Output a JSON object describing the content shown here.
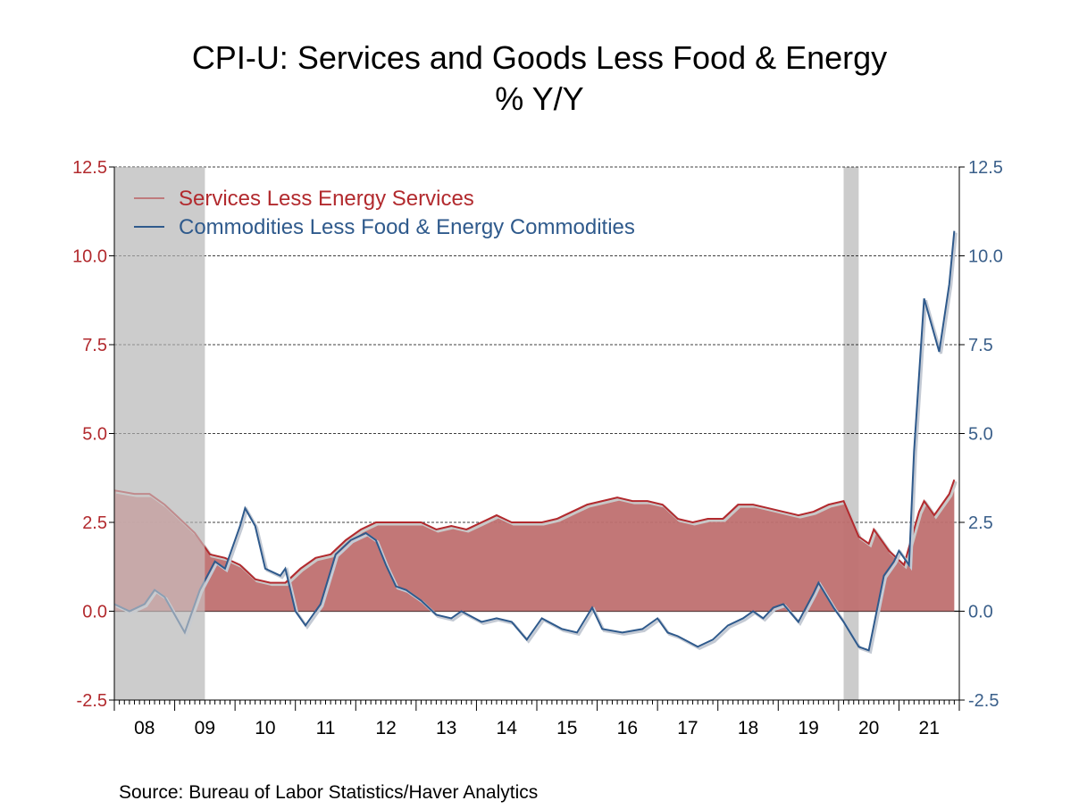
{
  "chart_data": {
    "type": "area",
    "title": "CPI-U: Services and Goods Less Food & Energy",
    "subtitle": "% Y/Y",
    "source": "Source:  Bureau of Labor Statistics/Haver Analytics",
    "xlim": [
      "2008-01",
      "2021-12"
    ],
    "x_tick_labels": [
      "08",
      "09",
      "10",
      "11",
      "12",
      "13",
      "14",
      "15",
      "16",
      "17",
      "18",
      "19",
      "20",
      "21"
    ],
    "ylim": [
      -2.5,
      12.5
    ],
    "y_ticks": [
      -2.5,
      0.0,
      2.5,
      5.0,
      7.5,
      10.0,
      12.5
    ],
    "y_tick_labels": [
      "-2.5",
      "0.0",
      "2.5",
      "5.0",
      "7.5",
      "10.0",
      "12.5"
    ],
    "grid": "horizontal dashed",
    "legend": "top-left",
    "recessions": [
      [
        "2008-01",
        "2009-06"
      ],
      [
        "2020-02",
        "2020-04"
      ]
    ],
    "colors": {
      "services": "#b22a2e",
      "services_fill": "#bf7070",
      "commodities": "#2f5a8c",
      "recession": "#cccccc",
      "left_axis": "#b22a2e",
      "right_axis": "#3a5f8a"
    },
    "series": [
      {
        "name": "Services Less Energy Services",
        "style": "area",
        "axis": "left",
        "points": [
          [
            "2008-01",
            3.4
          ],
          [
            "2008-05",
            3.3
          ],
          [
            "2008-08",
            3.3
          ],
          [
            "2008-11",
            3.0
          ],
          [
            "2009-02",
            2.6
          ],
          [
            "2009-05",
            2.2
          ],
          [
            "2009-08",
            1.6
          ],
          [
            "2009-11",
            1.5
          ],
          [
            "2010-02",
            1.3
          ],
          [
            "2010-05",
            0.9
          ],
          [
            "2010-08",
            0.8
          ],
          [
            "2010-11",
            0.8
          ],
          [
            "2011-02",
            1.2
          ],
          [
            "2011-05",
            1.5
          ],
          [
            "2011-08",
            1.6
          ],
          [
            "2011-11",
            2.0
          ],
          [
            "2012-02",
            2.3
          ],
          [
            "2012-05",
            2.5
          ],
          [
            "2012-08",
            2.5
          ],
          [
            "2012-11",
            2.5
          ],
          [
            "2013-02",
            2.5
          ],
          [
            "2013-05",
            2.3
          ],
          [
            "2013-08",
            2.4
          ],
          [
            "2013-11",
            2.3
          ],
          [
            "2014-02",
            2.5
          ],
          [
            "2014-05",
            2.7
          ],
          [
            "2014-08",
            2.5
          ],
          [
            "2014-11",
            2.5
          ],
          [
            "2015-02",
            2.5
          ],
          [
            "2015-05",
            2.6
          ],
          [
            "2015-08",
            2.8
          ],
          [
            "2015-11",
            3.0
          ],
          [
            "2016-02",
            3.1
          ],
          [
            "2016-05",
            3.2
          ],
          [
            "2016-08",
            3.1
          ],
          [
            "2016-11",
            3.1
          ],
          [
            "2017-02",
            3.0
          ],
          [
            "2017-05",
            2.6
          ],
          [
            "2017-08",
            2.5
          ],
          [
            "2017-11",
            2.6
          ],
          [
            "2018-02",
            2.6
          ],
          [
            "2018-05",
            3.0
          ],
          [
            "2018-08",
            3.0
          ],
          [
            "2018-11",
            2.9
          ],
          [
            "2019-02",
            2.8
          ],
          [
            "2019-05",
            2.7
          ],
          [
            "2019-08",
            2.8
          ],
          [
            "2019-11",
            3.0
          ],
          [
            "2020-02",
            3.1
          ],
          [
            "2020-05",
            2.1
          ],
          [
            "2020-07",
            1.9
          ],
          [
            "2020-08",
            2.3
          ],
          [
            "2020-11",
            1.7
          ],
          [
            "2021-02",
            1.3
          ],
          [
            "2021-05",
            2.8
          ],
          [
            "2021-06",
            3.1
          ],
          [
            "2021-08",
            2.7
          ],
          [
            "2021-11",
            3.3
          ],
          [
            "2021-12",
            3.7
          ]
        ]
      },
      {
        "name": "Commodities Less Food & Energy Commodities",
        "style": "line",
        "axis": "right",
        "points": [
          [
            "2008-01",
            0.2
          ],
          [
            "2008-04",
            0.0
          ],
          [
            "2008-07",
            0.2
          ],
          [
            "2008-09",
            0.6
          ],
          [
            "2008-11",
            0.4
          ],
          [
            "2009-03",
            -0.6
          ],
          [
            "2009-06",
            0.6
          ],
          [
            "2009-09",
            1.4
          ],
          [
            "2009-11",
            1.2
          ],
          [
            "2010-02",
            2.4
          ],
          [
            "2010-03",
            2.9
          ],
          [
            "2010-05",
            2.4
          ],
          [
            "2010-07",
            1.2
          ],
          [
            "2010-10",
            1.0
          ],
          [
            "2010-11",
            1.2
          ],
          [
            "2011-01",
            0.0
          ],
          [
            "2011-03",
            -0.4
          ],
          [
            "2011-06",
            0.2
          ],
          [
            "2011-09",
            1.6
          ],
          [
            "2011-12",
            2.0
          ],
          [
            "2012-03",
            2.2
          ],
          [
            "2012-05",
            2.0
          ],
          [
            "2012-07",
            1.3
          ],
          [
            "2012-09",
            0.7
          ],
          [
            "2012-11",
            0.6
          ],
          [
            "2013-02",
            0.3
          ],
          [
            "2013-05",
            -0.1
          ],
          [
            "2013-08",
            -0.2
          ],
          [
            "2013-10",
            0.0
          ],
          [
            "2014-02",
            -0.3
          ],
          [
            "2014-05",
            -0.2
          ],
          [
            "2014-08",
            -0.3
          ],
          [
            "2014-11",
            -0.8
          ],
          [
            "2015-02",
            -0.2
          ],
          [
            "2015-06",
            -0.5
          ],
          [
            "2015-09",
            -0.6
          ],
          [
            "2015-12",
            0.1
          ],
          [
            "2016-02",
            -0.5
          ],
          [
            "2016-06",
            -0.6
          ],
          [
            "2016-10",
            -0.5
          ],
          [
            "2017-01",
            -0.2
          ],
          [
            "2017-03",
            -0.6
          ],
          [
            "2017-05",
            -0.7
          ],
          [
            "2017-09",
            -1.0
          ],
          [
            "2017-12",
            -0.8
          ],
          [
            "2018-03",
            -0.4
          ],
          [
            "2018-06",
            -0.2
          ],
          [
            "2018-08",
            0.0
          ],
          [
            "2018-10",
            -0.2
          ],
          [
            "2018-12",
            0.1
          ],
          [
            "2019-02",
            0.2
          ],
          [
            "2019-05",
            -0.3
          ],
          [
            "2019-08",
            0.5
          ],
          [
            "2019-09",
            0.8
          ],
          [
            "2019-12",
            0.1
          ],
          [
            "2020-02",
            -0.3
          ],
          [
            "2020-05",
            -1.0
          ],
          [
            "2020-07",
            -1.1
          ],
          [
            "2020-10",
            1.0
          ],
          [
            "2020-12",
            1.4
          ],
          [
            "2021-01",
            1.7
          ],
          [
            "2021-03",
            1.3
          ],
          [
            "2021-04",
            4.5
          ],
          [
            "2021-06",
            8.8
          ],
          [
            "2021-09",
            7.3
          ],
          [
            "2021-11",
            9.2
          ],
          [
            "2021-12",
            10.7
          ]
        ]
      }
    ]
  }
}
